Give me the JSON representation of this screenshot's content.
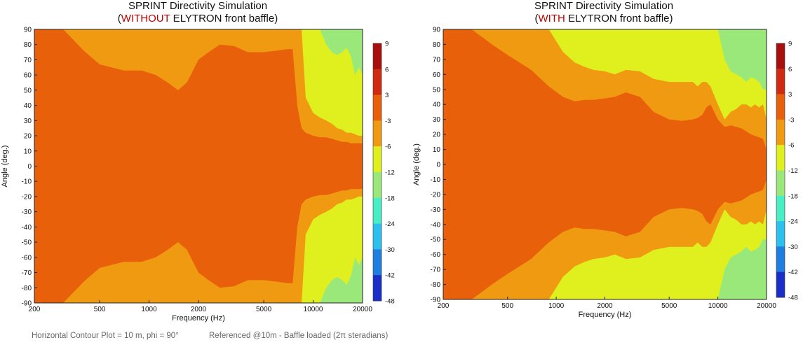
{
  "charts": [
    {
      "title_line1": "SPRINT Directivity Simulation",
      "title_open": "(",
      "title_highlight": "WITHOUT",
      "title_rest": " ELYTRON front baffle)"
    },
    {
      "title_line1": "SPRINT Directivity Simulation",
      "title_open": "(",
      "title_highlight": "WITH",
      "title_rest": " ELYTRON front baffle)"
    }
  ],
  "footer": {
    "left": "Horizontal Contour Plot = 10 m, phi = 90°",
    "right": "Referenced @10m - Baffle loaded (2π steradians)"
  },
  "colors": {
    "highlight": "#c00000",
    "levels": [
      "#161a74",
      "#1b2fc8",
      "#1f7fe0",
      "#2cc0ef",
      "#46efc4",
      "#9be87a",
      "#dff01e",
      "#f09a12",
      "#e8600a",
      "#d02a10",
      "#a81010"
    ]
  },
  "chart_data": [
    {
      "type": "heatmap",
      "title": "SPRINT Directivity Simulation (WITHOUT ELYTRON front baffle)",
      "xlabel": "Frequency (Hz)",
      "ylabel": "Angle (deg.)",
      "x_scale": "log",
      "xlim": [
        200,
        20000
      ],
      "ylim": [
        -90,
        90
      ],
      "x_ticks": [
        "200",
        "500",
        "1000",
        "2000",
        "5000",
        "10000",
        "20000"
      ],
      "y_ticks": [
        "90",
        "80",
        "70",
        "60",
        "50",
        "40",
        "30",
        "20",
        "10",
        "0",
        "-10",
        "-20",
        "-30",
        "-40",
        "-50",
        "-60",
        "-70",
        "-80",
        "-90"
      ],
      "colorbar_levels": [
        "9",
        "6",
        "3",
        "-3",
        "-6",
        "-12",
        "-18",
        "-24",
        "-30",
        "-42",
        "-48"
      ],
      "contour_boundaries": {
        "frequency_hz": [
          200,
          300,
          400,
          500,
          700,
          900,
          1100,
          1300,
          1500,
          1700,
          2000,
          2300,
          2700,
          3300,
          4000,
          5000,
          6000,
          7000,
          7500,
          8000,
          8500,
          9000,
          10000,
          11000,
          12000,
          13000,
          14000,
          15000,
          16000,
          17000,
          18000,
          19000,
          20000
        ],
        "minus3_db_angle": [
          90,
          90,
          76,
          67,
          63,
          63,
          60,
          55,
          50,
          55,
          70,
          75,
          80,
          79,
          75,
          75,
          76,
          77,
          77,
          40,
          25,
          22,
          20,
          19,
          19,
          18,
          17,
          16,
          16,
          15,
          15,
          15,
          15
        ],
        "minus6_db_angle": [
          90,
          90,
          90,
          90,
          90,
          90,
          90,
          90,
          90,
          90,
          90,
          90,
          90,
          90,
          90,
          90,
          90,
          90,
          90,
          90,
          90,
          45,
          35,
          32,
          30,
          28,
          25,
          24,
          22,
          22,
          21,
          20,
          20
        ],
        "minus12_db_angle": [
          90,
          90,
          90,
          90,
          90,
          90,
          90,
          90,
          90,
          90,
          90,
          90,
          90,
          90,
          90,
          90,
          90,
          90,
          90,
          90,
          90,
          90,
          90,
          90,
          80,
          75,
          73,
          75,
          78,
          72,
          60,
          65,
          60
        ]
      }
    },
    {
      "type": "heatmap",
      "title": "SPRINT Directivity Simulation (WITH ELYTRON front baffle)",
      "xlabel": "Frequency (Hz)",
      "ylabel": "Angle (deg.)",
      "x_scale": "log",
      "xlim": [
        200,
        20000
      ],
      "ylim": [
        -90,
        90
      ],
      "x_ticks": [
        "200",
        "500",
        "1000",
        "2000",
        "5000",
        "10000",
        "20000"
      ],
      "y_ticks": [
        "90",
        "80",
        "70",
        "60",
        "50",
        "40",
        "30",
        "20",
        "10",
        "0",
        "-10",
        "-20",
        "-30",
        "-40",
        "-50",
        "-60",
        "-70",
        "-80",
        "-90"
      ],
      "colorbar_levels": [
        "9",
        "6",
        "3",
        "-3",
        "-6",
        "-12",
        "-18",
        "-24",
        "-30",
        "-42",
        "-48"
      ],
      "contour_boundaries": {
        "frequency_hz": [
          200,
          300,
          400,
          500,
          700,
          900,
          1100,
          1300,
          1500,
          1700,
          2000,
          2300,
          2700,
          3300,
          4000,
          5000,
          6000,
          7000,
          7500,
          8000,
          8500,
          9000,
          10000,
          11000,
          12000,
          13000,
          14000,
          15000,
          16000,
          17000,
          18000,
          19000,
          20000
        ],
        "minus3_db_angle": [
          90,
          90,
          80,
          73,
          63,
          52,
          45,
          42,
          43,
          43,
          44,
          45,
          48,
          45,
          35,
          30,
          29,
          30,
          31,
          33,
          38,
          40,
          30,
          25,
          26,
          25,
          24,
          22,
          20,
          19,
          18,
          17,
          10
        ],
        "minus6_db_angle": [
          90,
          90,
          90,
          90,
          90,
          90,
          75,
          68,
          65,
          63,
          62,
          60,
          63,
          62,
          57,
          55,
          55,
          55,
          52,
          55,
          55,
          52,
          40,
          30,
          35,
          37,
          40,
          40,
          38,
          40,
          38,
          40,
          30
        ],
        "minus12_db_angle": [
          90,
          90,
          90,
          90,
          90,
          90,
          90,
          90,
          90,
          90,
          90,
          90,
          90,
          90,
          90,
          90,
          90,
          90,
          90,
          90,
          90,
          90,
          90,
          70,
          62,
          60,
          58,
          55,
          58,
          57,
          55,
          50,
          50
        ]
      }
    }
  ]
}
